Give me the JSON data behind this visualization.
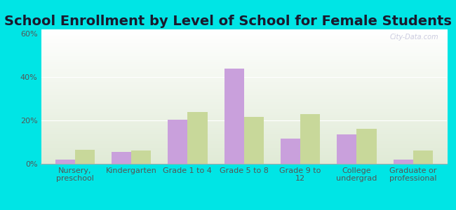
{
  "title": "School Enrollment by Level of School for Female Students",
  "categories": [
    "Nursery,\npreschool",
    "Kindergarten",
    "Grade 1 to 4",
    "Grade 5 to 8",
    "Grade 9 to\n12",
    "College\nundergrad",
    "Graduate or\nprofessional"
  ],
  "kwigillingok": [
    2.0,
    5.5,
    20.5,
    44.0,
    11.5,
    13.5,
    2.0
  ],
  "alaska": [
    6.5,
    6.0,
    24.0,
    21.5,
    23.0,
    16.0,
    6.0
  ],
  "kwig_color": "#c9a0dc",
  "alaska_color": "#c8d89a",
  "background_color": "#00e5e5",
  "ylim": [
    0,
    62
  ],
  "yticks": [
    0,
    20,
    40,
    60
  ],
  "ytick_labels": [
    "0%",
    "20%",
    "40%",
    "60%"
  ],
  "bar_width": 0.35,
  "title_fontsize": 14,
  "tick_fontsize": 8,
  "legend_fontsize": 9,
  "watermark": "City-Data.com"
}
